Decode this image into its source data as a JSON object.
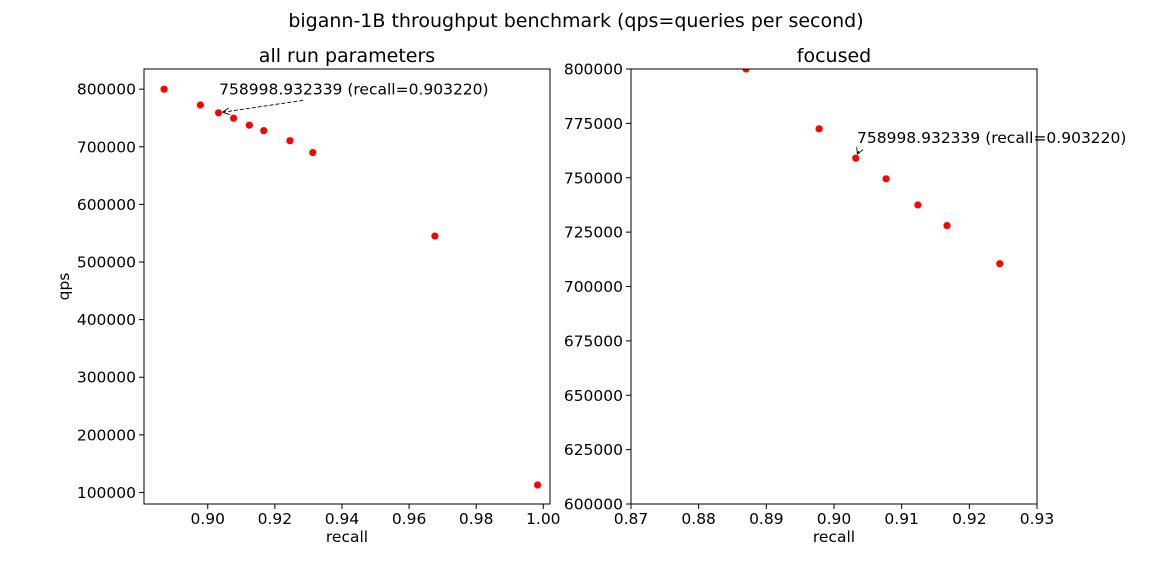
{
  "figure": {
    "suptitle": "bigann-1B throughput benchmark (qps=queries per second)"
  },
  "chart_data": [
    {
      "type": "scatter",
      "title": "all run parameters",
      "xlabel": "recall",
      "ylabel": "qps",
      "xlim": [
        0.881,
        1.002
      ],
      "ylim": [
        80000,
        835000
      ],
      "xticks": [
        0.9,
        0.92,
        0.94,
        0.96,
        0.98,
        1.0
      ],
      "xtick_labels": [
        "0.90",
        "0.92",
        "0.94",
        "0.96",
        "0.98",
        "1.00"
      ],
      "yticks": [
        100000,
        200000,
        300000,
        400000,
        500000,
        600000,
        700000,
        800000
      ],
      "ytick_labels": [
        "100000",
        "200000",
        "300000",
        "400000",
        "500000",
        "600000",
        "700000",
        "800000"
      ],
      "points_color": "#ff0000",
      "grid": false,
      "x": [
        0.887,
        0.8978,
        0.90322,
        0.9077,
        0.9124,
        0.9167,
        0.9245,
        0.9313,
        0.9677,
        0.9983
      ],
      "y": [
        800000,
        772500,
        758999,
        749500,
        737500,
        728000,
        710500,
        690000,
        545000,
        113000
      ],
      "annotation": {
        "text": "758998.932339 (recall=0.903220)",
        "point": [
          0.90322,
          758998.932339
        ],
        "text_anchor": [
          0.9034,
          791000
        ]
      }
    },
    {
      "type": "scatter",
      "title": "focused",
      "xlabel": "recall",
      "ylabel": "",
      "xlim": [
        0.87,
        0.93
      ],
      "ylim": [
        600000,
        800000
      ],
      "xticks": [
        0.87,
        0.88,
        0.89,
        0.9,
        0.91,
        0.92,
        0.93
      ],
      "xtick_labels": [
        "0.87",
        "0.88",
        "0.89",
        "0.90",
        "0.91",
        "0.92",
        "0.93"
      ],
      "yticks": [
        600000,
        625000,
        650000,
        675000,
        700000,
        725000,
        750000,
        775000,
        800000
      ],
      "ytick_labels": [
        "600000",
        "625000",
        "650000",
        "675000",
        "700000",
        "725000",
        "750000",
        "775000",
        "800000"
      ],
      "points_color": "#ff0000",
      "grid": false,
      "x": [
        0.887,
        0.8978,
        0.90322,
        0.9077,
        0.9124,
        0.9167,
        0.9245
      ],
      "y": [
        800000,
        772500,
        758999,
        749500,
        737500,
        728000,
        710500
      ],
      "annotation": {
        "text": "758998.932339 (recall=0.903220)",
        "point": [
          0.90322,
          758998.932339
        ],
        "text_anchor": [
          0.9034,
          766000
        ]
      }
    }
  ]
}
